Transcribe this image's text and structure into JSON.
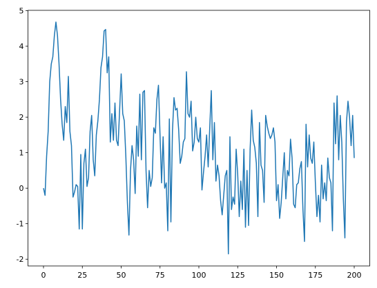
{
  "chart_data": {
    "type": "line",
    "color": "#1f77b4",
    "grid": false,
    "x": [
      0,
      1,
      2,
      3,
      4,
      5,
      6,
      7,
      8,
      9,
      10,
      11,
      12,
      13,
      14,
      15,
      16,
      17,
      18,
      19,
      20,
      21,
      22,
      23,
      24,
      25,
      26,
      27,
      28,
      29,
      30,
      31,
      32,
      33,
      34,
      35,
      36,
      37,
      38,
      39,
      40,
      41,
      42,
      43,
      44,
      45,
      46,
      47,
      48,
      49,
      50,
      51,
      52,
      53,
      54,
      55,
      56,
      57,
      58,
      59,
      60,
      61,
      62,
      63,
      64,
      65,
      66,
      67,
      68,
      69,
      70,
      71,
      72,
      73,
      74,
      75,
      76,
      77,
      78,
      79,
      80,
      81,
      82,
      83,
      84,
      85,
      86,
      87,
      88,
      89,
      90,
      91,
      92,
      93,
      94,
      95,
      96,
      97,
      98,
      99,
      100,
      101,
      102,
      103,
      104,
      105,
      106,
      107,
      108,
      109,
      110,
      111,
      112,
      113,
      114,
      115,
      116,
      117,
      118,
      119,
      120,
      121,
      122,
      123,
      124,
      125,
      126,
      127,
      128,
      129,
      130,
      131,
      132,
      133,
      134,
      135,
      136,
      137,
      138,
      139,
      140,
      141,
      142,
      143,
      144,
      145,
      146,
      147,
      148,
      149,
      150,
      151,
      152,
      153,
      154,
      155,
      156,
      157,
      158,
      159,
      160,
      161,
      162,
      163,
      164,
      165,
      166,
      167,
      168,
      169,
      170,
      171,
      172,
      173,
      174,
      175,
      176,
      177,
      178,
      179,
      180,
      181,
      182,
      183,
      184,
      185,
      186,
      187,
      188,
      189,
      190,
      191,
      192,
      193,
      194,
      195,
      196,
      197,
      198,
      199,
      200
    ],
    "values": [
      0,
      -0.2,
      0.9,
      1.6,
      3.0,
      3.5,
      3.7,
      4.3,
      4.68,
      4.3,
      3.5,
      2.5,
      1.8,
      1.35,
      2.3,
      1.85,
      3.15,
      1.6,
      1.2,
      -0.25,
      -0.1,
      0.1,
      0.05,
      -1.15,
      0.95,
      -1.15,
      0.7,
      1.1,
      0.05,
      0.3,
      1.6,
      2.05,
      0.8,
      0.35,
      1.5,
      1.9,
      2.5,
      3.4,
      3.7,
      4.43,
      4.47,
      3.25,
      3.7,
      1.3,
      2.1,
      1.35,
      2.4,
      1.35,
      1.2,
      2.2,
      3.22,
      2.1,
      1.9,
      0.9,
      -0.4,
      -1.32,
      0.5,
      1.2,
      0.8,
      -0.15,
      1.75,
      0.9,
      2.65,
      0.8,
      2.7,
      2.75,
      0.5,
      -0.55,
      0.5,
      0.05,
      0.3,
      1.7,
      1.55,
      2.5,
      2.9,
      1.5,
      0.15,
      1.45,
      0.0,
      0.15,
      -1.2,
      1.95,
      -0.95,
      1.6,
      2.55,
      2.2,
      2.25,
      1.65,
      0.7,
      0.9,
      1.3,
      1.4,
      3.28,
      2.1,
      2.0,
      2.45,
      1.05,
      1.3,
      2.0,
      1.4,
      1.3,
      1.7,
      -0.05,
      0.45,
      0.9,
      1.5,
      0.6,
      1.7,
      2.75,
      0.8,
      1.85,
      0.2,
      0.65,
      0.35,
      -0.35,
      -0.75,
      -0.2,
      0.35,
      0.5,
      -1.85,
      1.45,
      -0.6,
      -0.25,
      -0.45,
      1.1,
      0.4,
      -0.8,
      0.2,
      -0.6,
      1.1,
      -1.1,
      0.5,
      -1.05,
      1.1,
      2.2,
      1.35,
      1.15,
      0.7,
      -0.8,
      1.85,
      0.65,
      0.5,
      -0.4,
      2.05,
      1.75,
      1.55,
      1.4,
      1.5,
      1.7,
      1.3,
      -0.35,
      0.1,
      -0.85,
      -0.4,
      0.3,
      1.0,
      -0.3,
      0.5,
      0.35,
      1.38,
      0.85,
      -0.45,
      -0.55,
      0.1,
      0.15,
      0.55,
      0.75,
      -0.6,
      -1.5,
      1.8,
      0.6,
      1.5,
      0.85,
      0.7,
      1.3,
      0.15,
      -0.8,
      -0.2,
      -0.95,
      0.65,
      -0.3,
      0.15,
      -0.35,
      0.85,
      0.3,
      0.15,
      -1.2,
      2.4,
      1.25,
      2.6,
      0.8,
      2.05,
      1.3,
      -0.3,
      -1.4,
      1.85,
      2.45,
      2.0,
      1.2,
      2.05,
      0.85
    ],
    "xlim": [
      -10,
      210
    ],
    "ylim": [
      -2.19,
      5.01
    ],
    "xticks": [
      0,
      25,
      50,
      75,
      100,
      125,
      150,
      175,
      200
    ],
    "yticks": [
      -2,
      -1,
      0,
      1,
      2,
      3,
      4,
      5
    ]
  }
}
